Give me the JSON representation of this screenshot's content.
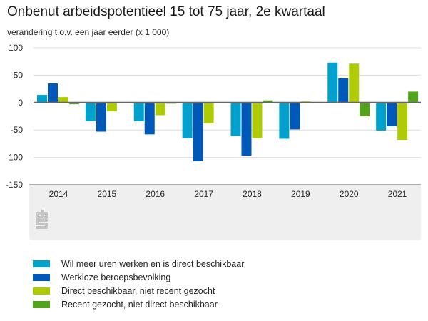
{
  "chart_data": {
    "type": "bar",
    "title": "Onbenut arbeidspotentieel 15 tot 75 jaar, 2e kwartaal",
    "subtitle": "verandering t.o.v. een jaar eerder (x 1 000)",
    "xlabel": "",
    "ylabel": "verandering t.o.v. een jaar eerder (x 1 000)",
    "ylim": [
      -150,
      100
    ],
    "yticks": [
      100,
      50,
      0,
      -50,
      -100,
      -150
    ],
    "grid": true,
    "legend_position": "bottom",
    "categories": [
      "2014",
      "2015",
      "2016",
      "2017",
      "2018",
      "2019",
      "2020",
      "2021"
    ],
    "series": [
      {
        "name": "Wil meer uren werken en is direct beschikbaar",
        "color": "#00a1cd",
        "values": [
          14,
          -34,
          -34,
          -65,
          -61,
          -66,
          73,
          -51
        ]
      },
      {
        "name": "Werkloze beroepsbevolking",
        "color": "#0058b8",
        "values": [
          35,
          -53,
          -58,
          -107,
          -97,
          -49,
          44,
          -43
        ]
      },
      {
        "name": "Direct beschikbaar, niet recent gezocht",
        "color": "#afcb05",
        "values": [
          10,
          -16,
          -23,
          -38,
          -65,
          2,
          71,
          -68
        ]
      },
      {
        "name": "Recent gezocht, niet direct beschikbaar",
        "color": "#53a31d",
        "values": [
          -3,
          1,
          -2,
          -1,
          4,
          0,
          -25,
          20
        ]
      }
    ]
  },
  "branding": {
    "logo": "cbs-logo"
  }
}
